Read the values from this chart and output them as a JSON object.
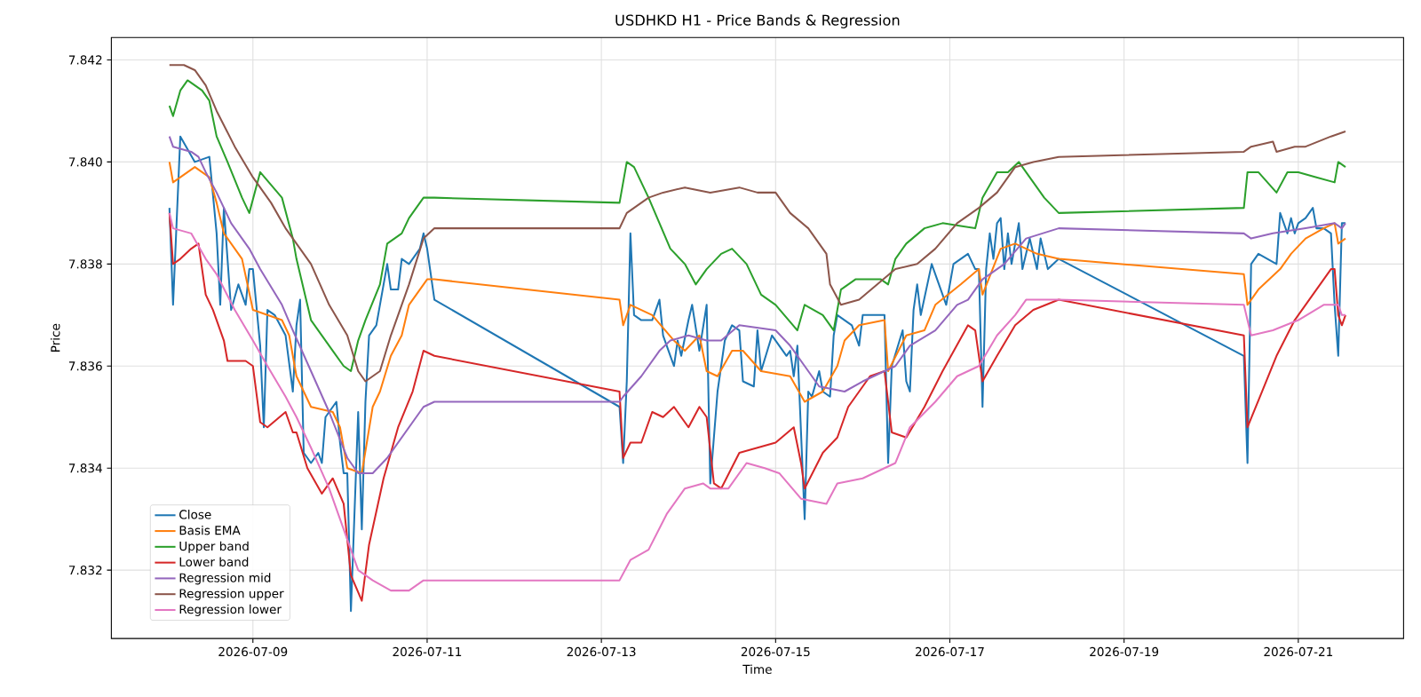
{
  "chart_data": {
    "type": "line",
    "title": "USDHKD H1 - Price Bands & Regression",
    "xlabel": "Time",
    "ylabel": "Price",
    "xlim": [
      "2026-07-07T09:00",
      "2026-07-22T05:00"
    ],
    "ylim": [
      7.83066,
      7.84244
    ],
    "xticks": [
      "2026-07-09",
      "2026-07-11",
      "2026-07-13",
      "2026-07-15",
      "2026-07-17",
      "2026-07-19",
      "2026-07-21"
    ],
    "yticks": [
      7.832,
      7.834,
      7.836,
      7.838,
      {
        "value": 7.84,
        "label": "7.840"
      },
      7.842
    ],
    "grid": true,
    "legend": "bottom left",
    "marker": "none",
    "line_style": "solid",
    "series": [
      {
        "name": "Close",
        "color": "#1f77b4",
        "x": [
          "2026-07-08T01:00",
          "2026-07-08T02:00",
          "2026-07-08T04:00",
          "2026-07-08T08:00",
          "2026-07-08T12:00",
          "2026-07-08T14:00",
          "2026-07-08T15:00",
          "2026-07-08T16:00",
          "2026-07-08T18:00",
          "2026-07-08T20:00",
          "2026-07-08T22:00",
          "2026-07-08T23:00",
          "2026-07-09T00:00",
          "2026-07-09T02:00",
          "2026-07-09T03:00",
          "2026-07-09T04:00",
          "2026-07-09T06:00",
          "2026-07-09T09:00",
          "2026-07-09T11:00",
          "2026-07-09T12:00",
          "2026-07-09T13:00",
          "2026-07-09T14:00",
          "2026-07-09T16:00",
          "2026-07-09T18:00",
          "2026-07-09T19:00",
          "2026-07-09T20:00",
          "2026-07-09T23:00",
          "2026-07-10T00:00",
          "2026-07-10T01:00",
          "2026-07-10T02:00",
          "2026-07-10T03:00",
          "2026-07-10T05:00",
          "2026-07-10T06:00",
          "2026-07-10T07:00",
          "2026-07-10T08:00",
          "2026-07-10T10:00",
          "2026-07-10T13:00",
          "2026-07-10T14:00",
          "2026-07-10T16:00",
          "2026-07-10T17:00",
          "2026-07-10T19:00",
          "2026-07-10T22:00",
          "2026-07-10T23:00",
          "2026-07-11T00:00",
          "2026-07-11T02:00",
          "2026-07-13T05:00",
          "2026-07-13T06:00",
          "2026-07-13T07:00",
          "2026-07-13T08:00",
          "2026-07-13T09:00",
          "2026-07-13T11:00",
          "2026-07-13T14:00",
          "2026-07-13T16:00",
          "2026-07-13T17:00",
          "2026-07-13T19:00",
          "2026-07-13T20:00",
          "2026-07-13T21:00",
          "2026-07-13T22:00",
          "2026-07-14T00:00",
          "2026-07-14T01:00",
          "2026-07-14T03:00",
          "2026-07-14T05:00",
          "2026-07-14T06:00",
          "2026-07-14T08:00",
          "2026-07-14T10:00",
          "2026-07-14T12:00",
          "2026-07-14T14:00",
          "2026-07-14T15:00",
          "2026-07-14T18:00",
          "2026-07-14T19:00",
          "2026-07-14T20:00",
          "2026-07-14T23:00",
          "2026-07-15T03:00",
          "2026-07-15T04:00",
          "2026-07-15T05:00",
          "2026-07-15T06:00",
          "2026-07-15T08:00",
          "2026-07-15T09:00",
          "2026-07-15T10:00",
          "2026-07-15T12:00",
          "2026-07-15T13:00",
          "2026-07-15T15:00",
          "2026-07-15T16:00",
          "2026-07-15T17:00",
          "2026-07-15T21:00",
          "2026-07-15T23:00",
          "2026-07-16T00:00",
          "2026-07-16T06:00",
          "2026-07-16T07:00",
          "2026-07-16T08:00",
          "2026-07-16T11:00",
          "2026-07-16T12:00",
          "2026-07-16T13:00",
          "2026-07-16T14:00",
          "2026-07-16T15:00",
          "2026-07-16T16:00",
          "2026-07-16T19:00",
          "2026-07-16T21:00",
          "2026-07-16T23:00",
          "2026-07-17T01:00",
          "2026-07-17T05:00",
          "2026-07-17T07:00",
          "2026-07-17T08:00",
          "2026-07-17T09:00",
          "2026-07-17T10:00",
          "2026-07-17T11:00",
          "2026-07-17T12:00",
          "2026-07-17T13:00",
          "2026-07-17T14:00",
          "2026-07-17T15:00",
          "2026-07-17T16:00",
          "2026-07-17T17:00",
          "2026-07-17T19:00",
          "2026-07-17T20:00",
          "2026-07-17T22:00",
          "2026-07-18T00:00",
          "2026-07-18T01:00",
          "2026-07-18T03:00",
          "2026-07-18T06:00",
          "2026-07-20T09:00",
          "2026-07-20T10:00",
          "2026-07-20T11:00",
          "2026-07-20T13:00",
          "2026-07-20T18:00",
          "2026-07-20T19:00",
          "2026-07-20T21:00",
          "2026-07-20T22:00",
          "2026-07-20T23:00",
          "2026-07-21T00:00",
          "2026-07-21T02:00",
          "2026-07-21T04:00",
          "2026-07-21T05:00",
          "2026-07-21T07:00",
          "2026-07-21T09:00",
          "2026-07-21T10:00",
          "2026-07-21T11:00",
          "2026-07-21T12:00",
          "2026-07-21T13:00"
        ],
        "values": [
          7.8391,
          7.8372,
          7.8405,
          7.84,
          7.8401,
          7.8386,
          7.8372,
          7.8391,
          7.8371,
          7.8376,
          7.8372,
          7.8379,
          7.8379,
          7.8364,
          7.8348,
          7.8371,
          7.837,
          7.8366,
          7.8355,
          7.8368,
          7.8373,
          7.8343,
          7.8341,
          7.8343,
          7.8341,
          7.835,
          7.8353,
          7.8345,
          7.8339,
          7.8339,
          7.8312,
          7.8351,
          7.8328,
          7.8353,
          7.8366,
          7.8368,
          7.838,
          7.8375,
          7.8375,
          7.8381,
          7.838,
          7.8383,
          7.8386,
          7.8383,
          7.8373,
          7.8352,
          7.8341,
          7.8357,
          7.8386,
          7.837,
          7.8369,
          7.8369,
          7.8373,
          7.8366,
          7.8362,
          7.836,
          7.8365,
          7.8362,
          7.8369,
          7.8372,
          7.8363,
          7.8372,
          7.8337,
          7.8355,
          7.8365,
          7.8368,
          7.8367,
          7.8357,
          7.8356,
          7.8367,
          7.8359,
          7.8366,
          7.8362,
          7.8363,
          7.8358,
          7.8364,
          7.833,
          7.8355,
          7.8354,
          7.8359,
          7.8355,
          7.8354,
          7.8366,
          7.837,
          7.8368,
          7.8364,
          7.837,
          7.837,
          7.8341,
          7.836,
          7.8367,
          7.8357,
          7.8355,
          7.8371,
          7.8376,
          7.837,
          7.838,
          7.8376,
          7.8372,
          7.838,
          7.8382,
          7.8379,
          7.8379,
          7.8352,
          7.8379,
          7.8386,
          7.8381,
          7.8388,
          7.8389,
          7.8379,
          7.8386,
          7.838,
          7.8388,
          7.8379,
          7.8385,
          7.8379,
          7.8385,
          7.8379,
          7.8381,
          7.8362,
          7.8341,
          7.838,
          7.8382,
          7.838,
          7.839,
          7.8386,
          7.8389,
          7.8386,
          7.8388,
          7.8389,
          7.8391,
          7.8387,
          7.8387,
          7.8386,
          7.8372,
          7.8362,
          7.8388,
          7.8388
        ]
      },
      {
        "name": "Basis EMA",
        "color": "#ff7f0e",
        "x": [
          "2026-07-08T01:00",
          "2026-07-08T02:00",
          "2026-07-08T08:00",
          "2026-07-08T12:00",
          "2026-07-08T14:00",
          "2026-07-08T16:00",
          "2026-07-08T21:00",
          "2026-07-09T00:00",
          "2026-07-09T08:00",
          "2026-07-09T10:00",
          "2026-07-09T12:00",
          "2026-07-09T16:00",
          "2026-07-09T22:00",
          "2026-07-10T00:00",
          "2026-07-10T02:00",
          "2026-07-10T06:00",
          "2026-07-10T09:00",
          "2026-07-10T11:00",
          "2026-07-10T14:00",
          "2026-07-10T17:00",
          "2026-07-10T19:00",
          "2026-07-10T22:00",
          "2026-07-11T00:00",
          "2026-07-11T02:00",
          "2026-07-13T05:00",
          "2026-07-13T06:00",
          "2026-07-13T08:00",
          "2026-07-13T14:00",
          "2026-07-13T20:00",
          "2026-07-13T23:00",
          "2026-07-14T03:00",
          "2026-07-14T05:00",
          "2026-07-14T08:00",
          "2026-07-14T12:00",
          "2026-07-14T15:00",
          "2026-07-14T20:00",
          "2026-07-15T04:00",
          "2026-07-15T08:00",
          "2026-07-15T13:00",
          "2026-07-15T17:00",
          "2026-07-15T19:00",
          "2026-07-15T23:00",
          "2026-07-16T06:00",
          "2026-07-16T07:00",
          "2026-07-16T12:00",
          "2026-07-16T17:00",
          "2026-07-16T20:00",
          "2026-07-17T03:00",
          "2026-07-17T08:00",
          "2026-07-17T09:00",
          "2026-07-17T14:00",
          "2026-07-17T18:00",
          "2026-07-18T00:00",
          "2026-07-18T06:00",
          "2026-07-20T09:00",
          "2026-07-20T10:00",
          "2026-07-20T13:00",
          "2026-07-20T19:00",
          "2026-07-20T22:00",
          "2026-07-21T02:00",
          "2026-07-21T07:00",
          "2026-07-21T10:00",
          "2026-07-21T11:00",
          "2026-07-21T13:00"
        ],
        "values": [
          7.84,
          7.8396,
          7.8399,
          7.8397,
          7.8392,
          7.8386,
          7.8381,
          7.8371,
          7.8369,
          7.8366,
          7.8358,
          7.8352,
          7.8351,
          7.8348,
          7.834,
          7.8339,
          7.8352,
          7.8355,
          7.8362,
          7.8366,
          7.8372,
          7.8375,
          7.8377,
          7.8377,
          7.8373,
          7.8368,
          7.8372,
          7.837,
          7.8365,
          7.8363,
          7.8366,
          7.8359,
          7.8358,
          7.8363,
          7.8363,
          7.8359,
          7.8358,
          7.8353,
          7.8355,
          7.836,
          7.8365,
          7.8368,
          7.8369,
          7.8359,
          7.8366,
          7.8367,
          7.8372,
          7.8376,
          7.8379,
          7.8374,
          7.8383,
          7.8384,
          7.8382,
          7.8381,
          7.8378,
          7.8372,
          7.8375,
          7.8379,
          7.8382,
          7.8385,
          7.8387,
          7.8388,
          7.8384,
          7.8385
        ]
      },
      {
        "name": "Upper band",
        "color": "#2ca02c",
        "x": [
          "2026-07-08T01:00",
          "2026-07-08T02:00",
          "2026-07-08T04:00",
          "2026-07-08T06:00",
          "2026-07-08T10:00",
          "2026-07-08T12:00",
          "2026-07-08T14:00",
          "2026-07-08T17:00",
          "2026-07-08T21:00",
          "2026-07-08T23:00",
          "2026-07-09T02:00",
          "2026-07-09T08:00",
          "2026-07-09T11:00",
          "2026-07-09T12:00",
          "2026-07-09T16:00",
          "2026-07-09T19:00",
          "2026-07-09T22:00",
          "2026-07-10T01:00",
          "2026-07-10T03:00",
          "2026-07-10T05:00",
          "2026-07-10T07:00",
          "2026-07-10T11:00",
          "2026-07-10T13:00",
          "2026-07-10T17:00",
          "2026-07-10T19:00",
          "2026-07-10T23:00",
          "2026-07-11T02:00",
          "2026-07-13T05:00",
          "2026-07-13T07:00",
          "2026-07-13T09:00",
          "2026-07-13T13:00",
          "2026-07-13T16:00",
          "2026-07-13T19:00",
          "2026-07-13T23:00",
          "2026-07-14T02:00",
          "2026-07-14T05:00",
          "2026-07-14T09:00",
          "2026-07-14T12:00",
          "2026-07-14T16:00",
          "2026-07-14T20:00",
          "2026-07-15T00:00",
          "2026-07-15T06:00",
          "2026-07-15T08:00",
          "2026-07-15T13:00",
          "2026-07-15T16:00",
          "2026-07-15T18:00",
          "2026-07-15T22:00",
          "2026-07-16T05:00",
          "2026-07-16T07:00",
          "2026-07-16T09:00",
          "2026-07-16T12:00",
          "2026-07-16T17:00",
          "2026-07-16T22:00",
          "2026-07-17T07:00",
          "2026-07-17T09:00",
          "2026-07-17T13:00",
          "2026-07-17T16:00",
          "2026-07-17T19:00",
          "2026-07-17T23:00",
          "2026-07-18T02:00",
          "2026-07-18T06:00",
          "2026-07-20T09:00",
          "2026-07-20T10:00",
          "2026-07-20T13:00",
          "2026-07-20T18:00",
          "2026-07-20T21:00",
          "2026-07-21T00:00",
          "2026-07-21T05:00",
          "2026-07-21T10:00",
          "2026-07-21T11:00",
          "2026-07-21T13:00"
        ],
        "values": [
          7.8411,
          7.8409,
          7.8414,
          7.8416,
          7.8414,
          7.8412,
          7.8405,
          7.84,
          7.8393,
          7.839,
          7.8398,
          7.8393,
          7.8385,
          7.8381,
          7.8369,
          7.8366,
          7.8363,
          7.836,
          7.8359,
          7.8365,
          7.8369,
          7.8376,
          7.8384,
          7.8386,
          7.8389,
          7.8393,
          7.8393,
          7.8392,
          7.84,
          7.8399,
          7.8393,
          7.8388,
          7.8383,
          7.838,
          7.8376,
          7.8379,
          7.8382,
          7.8383,
          7.838,
          7.8374,
          7.8372,
          7.8367,
          7.8372,
          7.837,
          7.8367,
          7.8375,
          7.8377,
          7.8377,
          7.8376,
          7.8381,
          7.8384,
          7.8387,
          7.8388,
          7.8387,
          7.8393,
          7.8398,
          7.8398,
          7.84,
          7.8396,
          7.8393,
          7.839,
          7.8391,
          7.8398,
          7.8398,
          7.8394,
          7.8398,
          7.8398,
          7.8397,
          7.8396,
          7.84,
          7.8399
        ]
      },
      {
        "name": "Lower band",
        "color": "#d62728",
        "x": [
          "2026-07-08T01:00",
          "2026-07-08T02:00",
          "2026-07-08T04:00",
          "2026-07-08T07:00",
          "2026-07-08T09:00",
          "2026-07-08T11:00",
          "2026-07-08T13:00",
          "2026-07-08T16:00",
          "2026-07-08T17:00",
          "2026-07-08T22:00",
          "2026-07-09T00:00",
          "2026-07-09T02:00",
          "2026-07-09T04:00",
          "2026-07-09T09:00",
          "2026-07-09T11:00",
          "2026-07-09T12:00",
          "2026-07-09T15:00",
          "2026-07-09T19:00",
          "2026-07-09T22:00",
          "2026-07-10T01:00",
          "2026-07-10T03:00",
          "2026-07-10T06:00",
          "2026-07-10T08:00",
          "2026-07-10T12:00",
          "2026-07-10T16:00",
          "2026-07-10T20:00",
          "2026-07-10T23:00",
          "2026-07-11T02:00",
          "2026-07-13T05:00",
          "2026-07-13T06:00",
          "2026-07-13T08:00",
          "2026-07-13T11:00",
          "2026-07-13T14:00",
          "2026-07-13T17:00",
          "2026-07-13T20:00",
          "2026-07-14T00:00",
          "2026-07-14T03:00",
          "2026-07-14T05:00",
          "2026-07-14T07:00",
          "2026-07-14T09:00",
          "2026-07-14T14:00",
          "2026-07-14T19:00",
          "2026-07-15T00:00",
          "2026-07-15T05:00",
          "2026-07-15T07:00",
          "2026-07-15T08:00",
          "2026-07-15T13:00",
          "2026-07-15T17:00",
          "2026-07-15T20:00",
          "2026-07-16T02:00",
          "2026-07-16T06:00",
          "2026-07-16T08:00",
          "2026-07-16T12:00",
          "2026-07-16T17:00",
          "2026-07-16T22:00",
          "2026-07-17T05:00",
          "2026-07-17T07:00",
          "2026-07-17T09:00",
          "2026-07-17T13:00",
          "2026-07-17T18:00",
          "2026-07-17T23:00",
          "2026-07-18T06:00",
          "2026-07-20T09:00",
          "2026-07-20T10:00",
          "2026-07-20T14:00",
          "2026-07-20T18:00",
          "2026-07-20T23:00",
          "2026-07-21T04:00",
          "2026-07-21T09:00",
          "2026-07-21T10:00",
          "2026-07-21T11:00",
          "2026-07-21T12:00",
          "2026-07-21T13:00"
        ],
        "values": [
          7.839,
          7.838,
          7.8381,
          7.8383,
          7.8384,
          7.8374,
          7.8371,
          7.8365,
          7.8361,
          7.8361,
          7.836,
          7.8349,
          7.8348,
          7.8351,
          7.8347,
          7.8347,
          7.834,
          7.8335,
          7.8338,
          7.8333,
          7.8319,
          7.8314,
          7.8325,
          7.8338,
          7.8348,
          7.8355,
          7.8363,
          7.8362,
          7.8355,
          7.8342,
          7.8345,
          7.8345,
          7.8351,
          7.835,
          7.8352,
          7.8348,
          7.8352,
          7.835,
          7.8337,
          7.8336,
          7.8343,
          7.8344,
          7.8345,
          7.8348,
          7.8341,
          7.8336,
          7.8343,
          7.8346,
          7.8352,
          7.8358,
          7.8359,
          7.8347,
          7.8346,
          7.8352,
          7.8359,
          7.8368,
          7.8367,
          7.8357,
          7.8362,
          7.8368,
          7.8371,
          7.8373,
          7.8366,
          7.8348,
          7.8355,
          7.8362,
          7.8369,
          7.8374,
          7.8379,
          7.8379,
          7.837,
          7.8368,
          7.837
        ]
      },
      {
        "name": "Regression mid",
        "color": "#9467bd",
        "x": [
          "2026-07-08T01:00",
          "2026-07-08T02:00",
          "2026-07-08T07:00",
          "2026-07-08T09:00",
          "2026-07-08T11:00",
          "2026-07-08T14:00",
          "2026-07-08T18:00",
          "2026-07-08T23:00",
          "2026-07-09T02:00",
          "2026-07-09T08:00",
          "2026-07-09T11:00",
          "2026-07-09T16:00",
          "2026-07-09T21:00",
          "2026-07-10T02:00",
          "2026-07-10T05:00",
          "2026-07-10T09:00",
          "2026-07-10T13:00",
          "2026-07-10T18:00",
          "2026-07-10T23:00",
          "2026-07-11T02:00",
          "2026-07-13T05:00",
          "2026-07-13T06:00",
          "2026-07-13T11:00",
          "2026-07-13T16:00",
          "2026-07-13T19:00",
          "2026-07-14T00:00",
          "2026-07-14T05:00",
          "2026-07-14T09:00",
          "2026-07-14T14:00",
          "2026-07-15T00:00",
          "2026-07-15T04:00",
          "2026-07-15T08:00",
          "2026-07-15T12:00",
          "2026-07-15T19:00",
          "2026-07-16T00:00",
          "2026-07-16T06:00",
          "2026-07-16T09:00",
          "2026-07-16T13:00",
          "2026-07-16T20:00",
          "2026-07-17T02:00",
          "2026-07-17T05:00",
          "2026-07-17T09:00",
          "2026-07-17T15:00",
          "2026-07-17T21:00",
          "2026-07-18T06:00",
          "2026-07-20T09:00",
          "2026-07-20T11:00",
          "2026-07-20T17:00",
          "2026-07-21T02:00",
          "2026-07-21T10:00",
          "2026-07-21T12:00",
          "2026-07-21T13:00"
        ],
        "values": [
          7.8405,
          7.8403,
          7.8402,
          7.8401,
          7.8398,
          7.8394,
          7.8388,
          7.8383,
          7.8379,
          7.8372,
          7.8367,
          7.8359,
          7.8351,
          7.8342,
          7.8339,
          7.8339,
          7.8342,
          7.8347,
          7.8352,
          7.8353,
          7.8353,
          7.8354,
          7.8358,
          7.8363,
          7.8365,
          7.8366,
          7.8365,
          7.8365,
          7.8368,
          7.8367,
          7.8364,
          7.836,
          7.8356,
          7.8355,
          7.8357,
          7.8359,
          7.836,
          7.8364,
          7.8367,
          7.8372,
          7.8373,
          7.8377,
          7.838,
          7.8385,
          7.8387,
          7.8386,
          7.8385,
          7.8386,
          7.8387,
          7.8388,
          7.8387,
          7.8388
        ]
      },
      {
        "name": "Regression upper",
        "color": "#8c564b",
        "x": [
          "2026-07-08T01:00",
          "2026-07-08T05:00",
          "2026-07-08T08:00",
          "2026-07-08T11:00",
          "2026-07-08T14:00",
          "2026-07-08T19:00",
          "2026-07-09T00:00",
          "2026-07-09T05:00",
          "2026-07-09T09:00",
          "2026-07-09T11:00",
          "2026-07-09T16:00",
          "2026-07-09T21:00",
          "2026-07-10T02:00",
          "2026-07-10T05:00",
          "2026-07-10T07:00",
          "2026-07-10T11:00",
          "2026-07-10T14:00",
          "2026-07-10T19:00",
          "2026-07-10T23:00",
          "2026-07-11T02:00",
          "2026-07-13T05:00",
          "2026-07-13T07:00",
          "2026-07-13T13:00",
          "2026-07-13T17:00",
          "2026-07-13T23:00",
          "2026-07-14T06:00",
          "2026-07-14T14:00",
          "2026-07-14T19:00",
          "2026-07-15T00:00",
          "2026-07-15T04:00",
          "2026-07-15T09:00",
          "2026-07-15T14:00",
          "2026-07-15T15:00",
          "2026-07-15T18:00",
          "2026-07-15T23:00",
          "2026-07-16T04:00",
          "2026-07-16T09:00",
          "2026-07-16T15:00",
          "2026-07-16T20:00",
          "2026-07-17T02:00",
          "2026-07-17T08:00",
          "2026-07-17T13:00",
          "2026-07-17T18:00",
          "2026-07-17T23:00",
          "2026-07-18T06:00",
          "2026-07-20T09:00",
          "2026-07-20T11:00",
          "2026-07-20T17:00",
          "2026-07-20T18:00",
          "2026-07-20T23:00",
          "2026-07-21T02:00",
          "2026-07-21T09:00",
          "2026-07-21T13:00"
        ],
        "values": [
          7.8419,
          7.8419,
          7.8418,
          7.8415,
          7.841,
          7.8403,
          7.8397,
          7.8392,
          7.8387,
          7.8385,
          7.838,
          7.8372,
          7.8366,
          7.8359,
          7.8357,
          7.8359,
          7.8366,
          7.8376,
          7.8385,
          7.8387,
          7.8387,
          7.839,
          7.8393,
          7.8394,
          7.8395,
          7.8394,
          7.8395,
          7.8394,
          7.8394,
          7.839,
          7.8387,
          7.8382,
          7.8376,
          7.8372,
          7.8373,
          7.8376,
          7.8379,
          7.838,
          7.8383,
          7.8388,
          7.8391,
          7.8394,
          7.8399,
          7.84,
          7.8401,
          7.8402,
          7.8403,
          7.8404,
          7.8402,
          7.8403,
          7.8403,
          7.8405,
          7.8406
        ]
      },
      {
        "name": "Regression lower",
        "color": "#e377c2",
        "x": [
          "2026-07-08T01:00",
          "2026-07-08T02:00",
          "2026-07-08T07:00",
          "2026-07-08T11:00",
          "2026-07-08T14:00",
          "2026-07-08T19:00",
          "2026-07-09T00:00",
          "2026-07-09T04:00",
          "2026-07-09T09:00",
          "2026-07-09T12:00",
          "2026-07-09T16:00",
          "2026-07-09T21:00",
          "2026-07-10T01:00",
          "2026-07-10T05:00",
          "2026-07-10T09:00",
          "2026-07-10T14:00",
          "2026-07-10T19:00",
          "2026-07-10T23:00",
          "2026-07-11T02:00",
          "2026-07-13T05:00",
          "2026-07-13T08:00",
          "2026-07-13T13:00",
          "2026-07-13T18:00",
          "2026-07-13T23:00",
          "2026-07-14T04:00",
          "2026-07-14T06:00",
          "2026-07-14T11:00",
          "2026-07-14T16:00",
          "2026-07-14T21:00",
          "2026-07-15T01:00",
          "2026-07-15T07:00",
          "2026-07-15T14:00",
          "2026-07-15T17:00",
          "2026-07-16T00:00",
          "2026-07-16T06:00",
          "2026-07-16T09:00",
          "2026-07-16T13:00",
          "2026-07-16T20:00",
          "2026-07-17T02:00",
          "2026-07-17T08:00",
          "2026-07-17T13:00",
          "2026-07-17T18:00",
          "2026-07-17T21:00",
          "2026-07-18T06:00",
          "2026-07-20T09:00",
          "2026-07-20T11:00",
          "2026-07-20T17:00",
          "2026-07-21T00:00",
          "2026-07-21T07:00",
          "2026-07-21T11:00",
          "2026-07-21T12:00",
          "2026-07-21T13:00"
        ],
        "values": [
          7.839,
          7.8387,
          7.8386,
          7.8381,
          7.8378,
          7.8371,
          7.8365,
          7.836,
          7.8354,
          7.835,
          7.8344,
          7.8336,
          7.8328,
          7.832,
          7.8318,
          7.8316,
          7.8316,
          7.8318,
          7.8318,
          7.8318,
          7.8322,
          7.8324,
          7.8331,
          7.8336,
          7.8337,
          7.8336,
          7.8336,
          7.8341,
          7.834,
          7.8339,
          7.8334,
          7.8333,
          7.8337,
          7.8338,
          7.834,
          7.8341,
          7.8348,
          7.8353,
          7.8358,
          7.836,
          7.8366,
          7.837,
          7.8373,
          7.8373,
          7.8372,
          7.8366,
          7.8367,
          7.8369,
          7.8372,
          7.8372,
          7.837,
          7.837
        ]
      }
    ]
  }
}
